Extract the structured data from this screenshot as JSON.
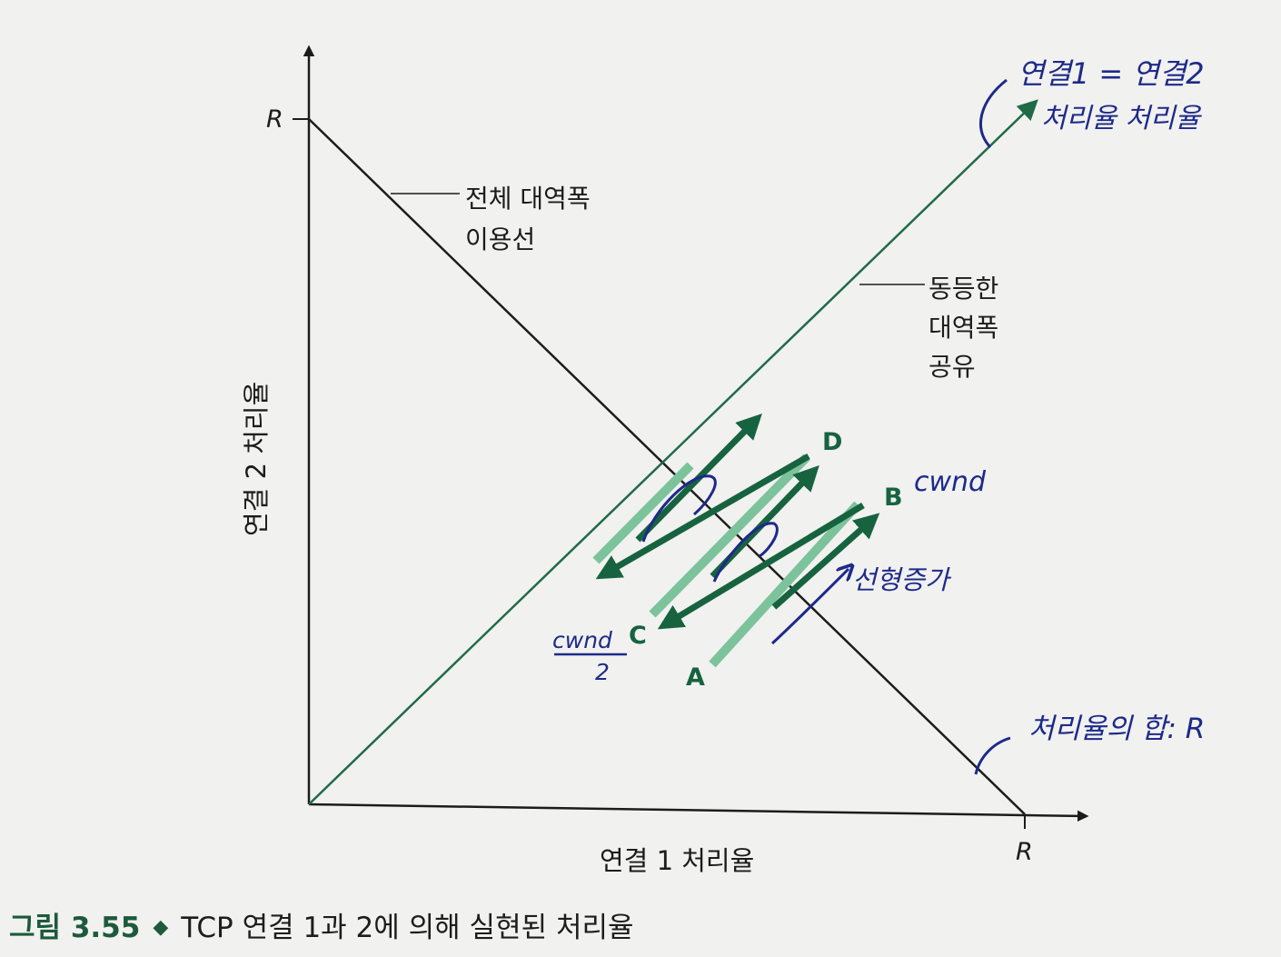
{
  "axes": {
    "x_label": "연결 1 처리율",
    "y_label": "연결 2 처리율",
    "x_max_label": "R",
    "y_max_label": "R"
  },
  "lines": {
    "full_bandwidth_line1": "전체 대역폭",
    "full_bandwidth_line2": "이용선",
    "equal_share_line1": "동등한",
    "equal_share_line2": "대역폭",
    "equal_share_line3": "공유"
  },
  "points": {
    "A": "A",
    "B": "B",
    "C": "C",
    "D": "D"
  },
  "handwriting": {
    "fair_line1": "연결1 = 연결2",
    "fair_line2": "처리율   처리율",
    "cwnd": "cwnd",
    "cwnd_half_top": "cwnd",
    "cwnd_half_bottom": "2",
    "linear_increase": "선형증가",
    "sum_r": "처리율의 합: R"
  },
  "caption": {
    "figure_number": "그림 3.55",
    "text": "TCP 연결 1과 2에 의해 실현된 처리율"
  },
  "colors": {
    "axis": "#1c1c1c",
    "equal_share": "#1f6b48",
    "arrow_dark": "#17633f",
    "arrow_light": "#7cc39c",
    "ink": "#1d2a8a"
  }
}
